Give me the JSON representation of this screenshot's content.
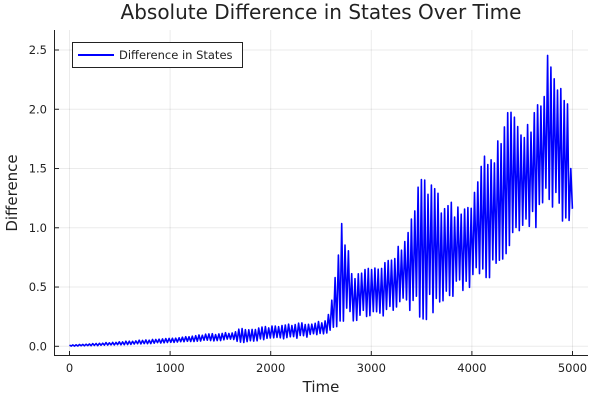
{
  "chart_data": {
    "type": "line",
    "title": "Absolute Difference in States Over Time",
    "xlabel": "Time",
    "ylabel": "Difference",
    "xlim": [
      -150,
      5150
    ],
    "ylim": [
      -0.07,
      2.65
    ],
    "xticks": [
      0,
      1000,
      2000,
      3000,
      4000,
      5000
    ],
    "xtick_labels": [
      "0",
      "1000",
      "2000",
      "3000",
      "4000",
      "5000"
    ],
    "yticks": [
      0,
      0.5,
      1.0,
      1.5,
      2.0,
      2.5
    ],
    "ytick_labels": [
      "0.0",
      "0.5",
      "1.0",
      "1.5",
      "2.0",
      "2.5"
    ],
    "grid": true,
    "legend": {
      "position": "top-left",
      "entries": [
        "Difference in States"
      ]
    },
    "series": [
      {
        "name": "Difference in States",
        "color": "#0000ff",
        "description_of_values": "rapidly oscillating signal; envelope (upper/lower peaks) sampled over time",
        "x": [
          0,
          500,
          1000,
          1300,
          1600,
          1700,
          2000,
          2300,
          2550,
          2620,
          2650,
          2680,
          2700,
          2750,
          2780,
          2820,
          2900,
          3000,
          3100,
          3200,
          3300,
          3400,
          3500,
          3600,
          3700,
          3800,
          3900,
          4000,
          4050,
          4100,
          4200,
          4300,
          4400,
          4500,
          4600,
          4700,
          4750,
          4800,
          4850,
          4900,
          4950,
          5000
        ],
        "upper": [
          0.01,
          0.04,
          0.07,
          0.1,
          0.12,
          0.15,
          0.17,
          0.2,
          0.22,
          0.45,
          0.75,
          0.9,
          1.08,
          0.98,
          0.85,
          0.6,
          0.68,
          0.7,
          0.72,
          0.75,
          0.9,
          1.2,
          1.43,
          1.4,
          1.3,
          1.22,
          1.18,
          1.2,
          1.55,
          1.6,
          1.62,
          2.0,
          2.1,
          1.9,
          2.0,
          2.2,
          2.5,
          2.58,
          2.3,
          2.3,
          2.25,
          1.2
        ],
        "lower": [
          0.0,
          0.01,
          0.03,
          0.04,
          0.05,
          0.03,
          0.05,
          0.07,
          0.1,
          0.12,
          0.12,
          0.15,
          0.15,
          0.18,
          0.2,
          0.2,
          0.22,
          0.25,
          0.25,
          0.28,
          0.3,
          0.3,
          0.2,
          0.25,
          0.3,
          0.38,
          0.45,
          0.5,
          0.6,
          0.6,
          0.55,
          0.5,
          0.85,
          0.85,
          0.95,
          1.05,
          1.2,
          1.15,
          1.1,
          0.95,
          0.95,
          1.16
        ]
      }
    ]
  }
}
